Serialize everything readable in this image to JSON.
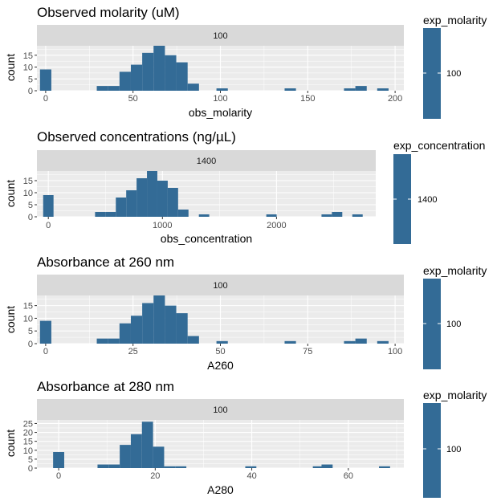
{
  "colors": {
    "bar": "#336b96",
    "panel": "#ebebeb",
    "strip": "#d9d9d9",
    "grid": "#ffffff",
    "tick_text": "#4d4d4d"
  },
  "chart_data": [
    {
      "type": "bar",
      "title": "Observed molarity (uM)",
      "xlabel": "obs_molarity",
      "ylabel": "count",
      "facet_label": "100",
      "legend_title": "exp_molarity",
      "legend_label": "100",
      "xlim": [
        -5,
        205
      ],
      "ylim": [
        0,
        19
      ],
      "x_ticks": [
        0,
        50,
        100,
        150,
        200
      ],
      "x_tick_labels": [
        "0",
        "50",
        "100",
        "150",
        "200"
      ],
      "y_ticks": [
        0,
        5,
        10,
        15
      ],
      "y_tick_labels": [
        "0",
        "5",
        "10",
        "15"
      ],
      "bin_width": 6.5,
      "bins": [
        {
          "x": 0,
          "count": 9
        },
        {
          "x": 32.5,
          "count": 2
        },
        {
          "x": 39,
          "count": 2
        },
        {
          "x": 45.5,
          "count": 8
        },
        {
          "x": 52,
          "count": 11
        },
        {
          "x": 58.5,
          "count": 16
        },
        {
          "x": 65,
          "count": 19
        },
        {
          "x": 71.5,
          "count": 15
        },
        {
          "x": 78,
          "count": 12
        },
        {
          "x": 84.5,
          "count": 3
        },
        {
          "x": 101,
          "count": 1
        },
        {
          "x": 140,
          "count": 1
        },
        {
          "x": 174,
          "count": 1
        },
        {
          "x": 180.5,
          "count": 2
        },
        {
          "x": 193,
          "count": 1
        }
      ]
    },
    {
      "type": "bar",
      "title": "Observed concentrations (ng/µL)",
      "xlabel": "obs_concentration",
      "ylabel": "count",
      "facet_label": "1400",
      "legend_title": "exp_concentration",
      "legend_label": "1400",
      "xlim": [
        -100,
        2870
      ],
      "ylim": [
        0,
        19
      ],
      "x_ticks": [
        0,
        1000,
        2000
      ],
      "x_tick_labels": [
        "0",
        "1000",
        "2000"
      ],
      "y_ticks": [
        0,
        5,
        10,
        15
      ],
      "y_tick_labels": [
        "0",
        "5",
        "10",
        "15"
      ],
      "bin_width": 91,
      "bins": [
        {
          "x": 0,
          "count": 9
        },
        {
          "x": 455,
          "count": 2
        },
        {
          "x": 546,
          "count": 2
        },
        {
          "x": 637,
          "count": 8
        },
        {
          "x": 728,
          "count": 11
        },
        {
          "x": 819,
          "count": 16
        },
        {
          "x": 910,
          "count": 19
        },
        {
          "x": 1001,
          "count": 15
        },
        {
          "x": 1092,
          "count": 12
        },
        {
          "x": 1183,
          "count": 3
        },
        {
          "x": 1365,
          "count": 1
        },
        {
          "x": 1956,
          "count": 1
        },
        {
          "x": 2440,
          "count": 1
        },
        {
          "x": 2531,
          "count": 2
        },
        {
          "x": 2710,
          "count": 1
        }
      ]
    },
    {
      "type": "bar",
      "title": "Absorbance at 260 nm",
      "xlabel": "A260",
      "ylabel": "count",
      "facet_label": "100",
      "legend_title": "exp_molarity",
      "legend_label": "100",
      "xlim": [
        -2.5,
        102.5
      ],
      "ylim": [
        0,
        19
      ],
      "x_ticks": [
        0,
        25,
        50,
        75,
        100
      ],
      "x_tick_labels": [
        "0",
        "25",
        "50",
        "75",
        "100"
      ],
      "y_ticks": [
        0,
        5,
        10,
        15
      ],
      "y_tick_labels": [
        "0",
        "5",
        "10",
        "15"
      ],
      "bin_width": 3.25,
      "bins": [
        {
          "x": 0,
          "count": 9
        },
        {
          "x": 16.25,
          "count": 2
        },
        {
          "x": 19.5,
          "count": 2
        },
        {
          "x": 22.75,
          "count": 8
        },
        {
          "x": 26,
          "count": 11
        },
        {
          "x": 29.25,
          "count": 16
        },
        {
          "x": 32.5,
          "count": 19
        },
        {
          "x": 35.75,
          "count": 15
        },
        {
          "x": 39,
          "count": 12
        },
        {
          "x": 42.25,
          "count": 3
        },
        {
          "x": 50.5,
          "count": 1
        },
        {
          "x": 70,
          "count": 1
        },
        {
          "x": 87,
          "count": 1
        },
        {
          "x": 90.25,
          "count": 2
        },
        {
          "x": 96.5,
          "count": 1
        }
      ]
    },
    {
      "type": "bar",
      "title": "Absorbance at 280 nm",
      "xlabel": "A280",
      "ylabel": "count",
      "facet_label": "100",
      "legend_title": "exp_molarity",
      "legend_label": "100",
      "xlim": [
        -4.5,
        71.5
      ],
      "ylim": [
        0,
        27
      ],
      "x_ticks": [
        0,
        20,
        40,
        60
      ],
      "x_tick_labels": [
        "0",
        "20",
        "40",
        "60"
      ],
      "y_ticks": [
        0,
        5,
        10,
        15,
        20,
        25
      ],
      "y_tick_labels": [
        "0",
        "5",
        "10",
        "15",
        "20",
        "25"
      ],
      "bin_width": 2.3,
      "bins": [
        {
          "x": 0,
          "count": 9
        },
        {
          "x": 9.2,
          "count": 2
        },
        {
          "x": 11.5,
          "count": 2
        },
        {
          "x": 13.8,
          "count": 13
        },
        {
          "x": 16.1,
          "count": 19
        },
        {
          "x": 18.4,
          "count": 26
        },
        {
          "x": 20.7,
          "count": 12
        },
        {
          "x": 23,
          "count": 1
        },
        {
          "x": 25.3,
          "count": 1
        },
        {
          "x": 39.8,
          "count": 1
        },
        {
          "x": 53.8,
          "count": 1
        },
        {
          "x": 55.6,
          "count": 2
        },
        {
          "x": 67.5,
          "count": 1
        }
      ]
    }
  ]
}
